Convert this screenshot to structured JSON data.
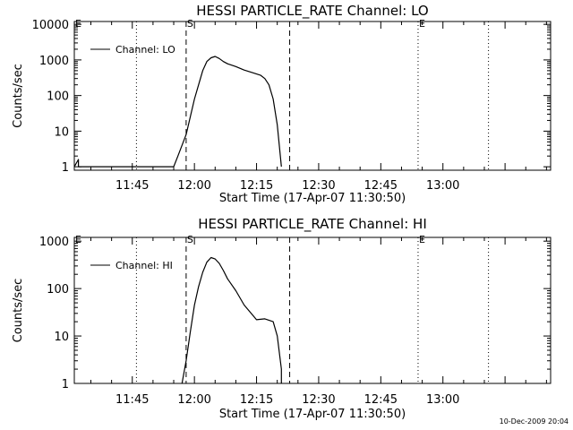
{
  "footer_timestamp": "10-Dec-2009 20:04",
  "chart_data": [
    {
      "type": "line",
      "title": "HESSI PARTICLE_RATE Channel: LO",
      "xlabel": "Start Time (17-Apr-07 11:30:50)",
      "ylabel": "Counts/sec",
      "y_scale": "log",
      "ylim": [
        0.8,
        12000
      ],
      "xlim": [
        "11:31",
        "13:26"
      ],
      "x_ticks": [
        "11:45",
        "12:00",
        "12:15",
        "12:30",
        "12:45",
        "13:00"
      ],
      "y_ticks": [
        "1",
        "10",
        "100",
        "1000",
        "10000"
      ],
      "legend": {
        "label": "Channel: LO",
        "position": "top-left"
      },
      "markers": [
        {
          "label": "E",
          "time": "11:31",
          "style": "dotted"
        },
        {
          "label": "",
          "time": "11:46",
          "style": "dotted"
        },
        {
          "label": "S",
          "time": "11:58",
          "style": "dashed"
        },
        {
          "label": "",
          "time": "12:23",
          "style": "dashed"
        },
        {
          "label": "E",
          "time": "12:54",
          "style": "dotted"
        },
        {
          "label": "",
          "time": "13:11",
          "style": "dotted"
        }
      ],
      "series": [
        {
          "name": "Channel: LO",
          "points": [
            [
              "11:31",
              1
            ],
            [
              "11:32",
              1.6
            ],
            [
              "11:32",
              1
            ],
            [
              "11:55",
              1
            ],
            [
              "11:56",
              2
            ],
            [
              "11:57",
              4
            ],
            [
              "11:58",
              8
            ],
            [
              "11:59",
              25
            ],
            [
              "12:00",
              80
            ],
            [
              "12:01",
              200
            ],
            [
              "12:02",
              500
            ],
            [
              "12:03",
              900
            ],
            [
              "12:04",
              1150
            ],
            [
              "12:05",
              1250
            ],
            [
              "12:06",
              1100
            ],
            [
              "12:07",
              900
            ],
            [
              "12:08",
              780
            ],
            [
              "12:10",
              650
            ],
            [
              "12:12",
              520
            ],
            [
              "12:14",
              440
            ],
            [
              "12:16",
              370
            ],
            [
              "12:17",
              300
            ],
            [
              "12:18",
              200
            ],
            [
              "12:19",
              80
            ],
            [
              "12:20",
              15
            ],
            [
              "12:21",
              1
            ]
          ]
        }
      ]
    },
    {
      "type": "line",
      "title": "HESSI PARTICLE_RATE Channel: HI",
      "xlabel": "Start Time (17-Apr-07 11:30:50)",
      "ylabel": "Counts/sec",
      "y_scale": "log",
      "ylim": [
        1,
        1200
      ],
      "xlim": [
        "11:31",
        "13:26"
      ],
      "x_ticks": [
        "11:45",
        "12:00",
        "12:15",
        "12:30",
        "12:45",
        "13:00"
      ],
      "y_ticks": [
        "1",
        "10",
        "100",
        "1000"
      ],
      "legend": {
        "label": "Channel: HI",
        "position": "top-left"
      },
      "markers": [
        {
          "label": "E",
          "time": "11:31",
          "style": "dotted"
        },
        {
          "label": "",
          "time": "11:46",
          "style": "dotted"
        },
        {
          "label": "S",
          "time": "11:58",
          "style": "dashed"
        },
        {
          "label": "",
          "time": "12:23",
          "style": "dashed"
        },
        {
          "label": "E",
          "time": "12:54",
          "style": "dotted"
        },
        {
          "label": "",
          "time": "13:11",
          "style": "dotted"
        }
      ],
      "series": [
        {
          "name": "Channel: HI",
          "points": [
            [
              "11:57",
              1
            ],
            [
              "11:58",
              3
            ],
            [
              "11:59",
              12
            ],
            [
              "12:00",
              45
            ],
            [
              "12:01",
              110
            ],
            [
              "12:02",
              220
            ],
            [
              "12:03",
              360
            ],
            [
              "12:04",
              450
            ],
            [
              "12:05",
              420
            ],
            [
              "12:06",
              340
            ],
            [
              "12:07",
              240
            ],
            [
              "12:08",
              160
            ],
            [
              "12:10",
              90
            ],
            [
              "12:12",
              45
            ],
            [
              "12:14",
              28
            ],
            [
              "12:15",
              22
            ],
            [
              "12:17",
              23
            ],
            [
              "12:19",
              20
            ],
            [
              "12:20",
              10
            ],
            [
              "12:21",
              2
            ],
            [
              "12:21",
              1
            ]
          ]
        }
      ]
    }
  ]
}
